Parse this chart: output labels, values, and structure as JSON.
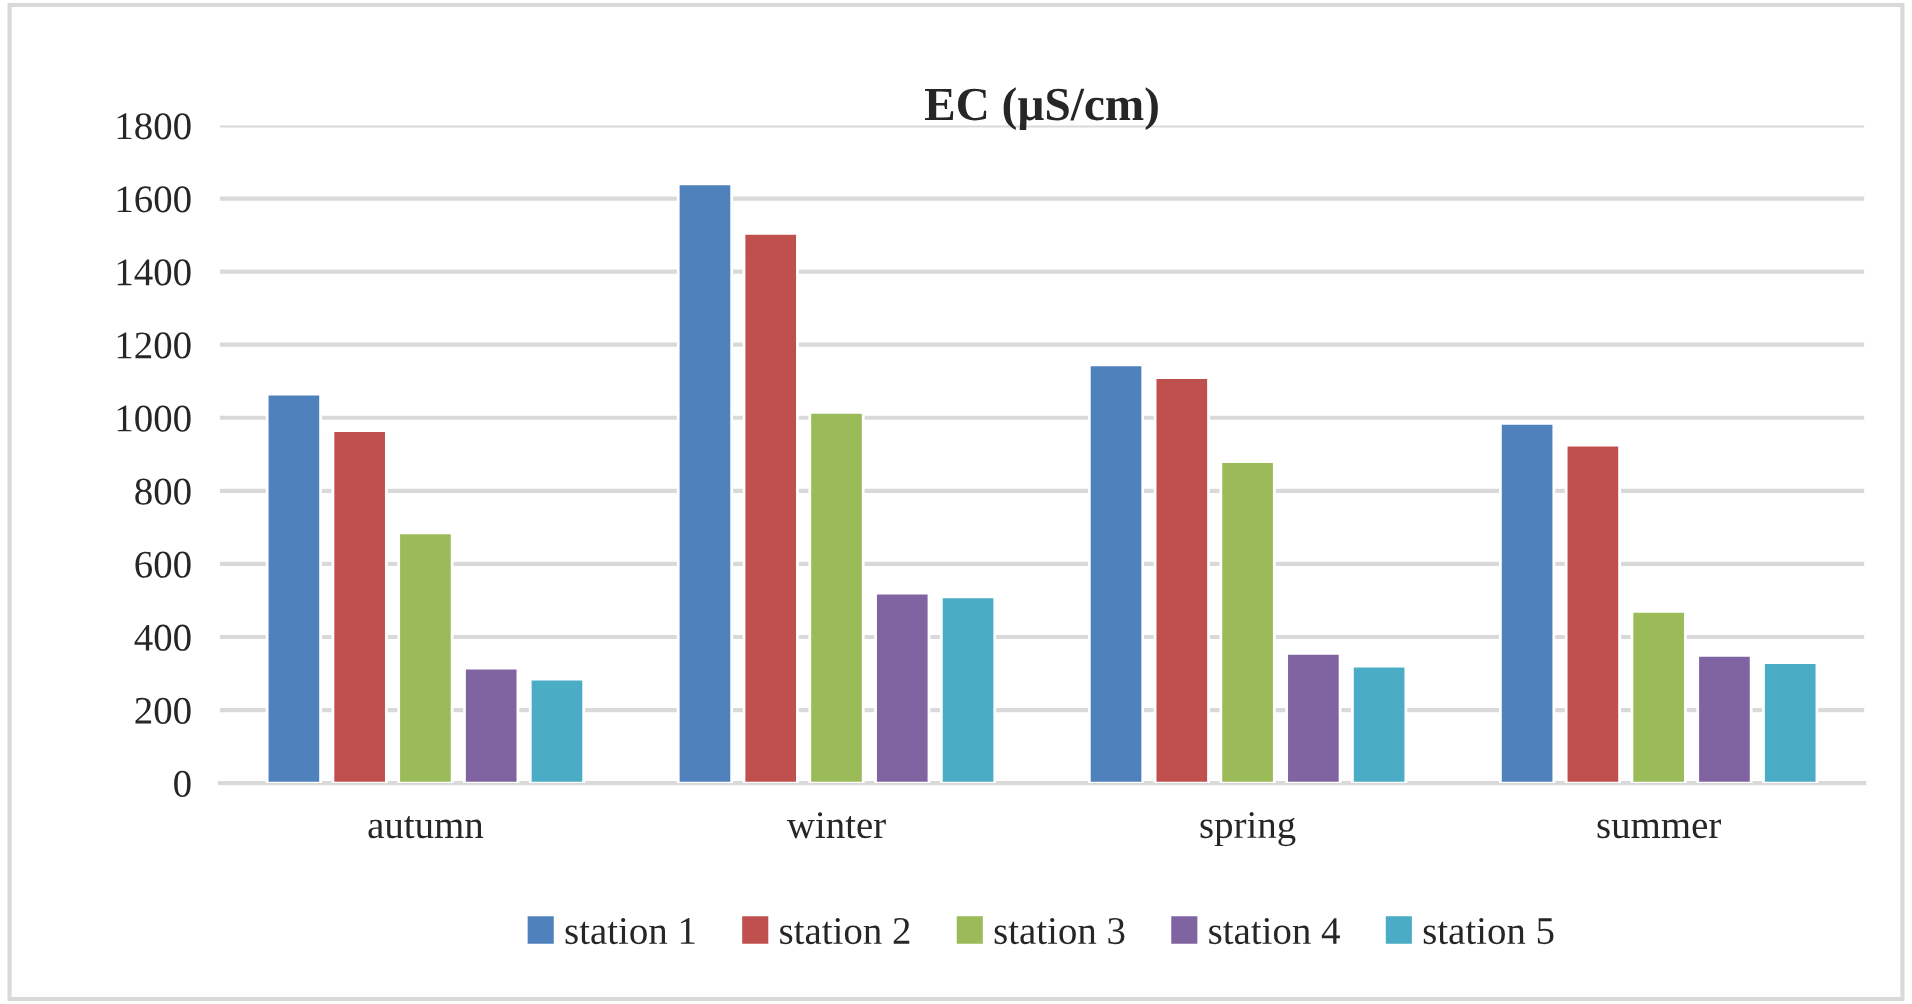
{
  "chart_data": {
    "type": "bar",
    "title": "EC (µS/cm)",
    "categories": [
      "autumn",
      "winter",
      "spring",
      "summer"
    ],
    "series": [
      {
        "name": "station 1",
        "color": "#4f81bd",
        "values": [
          1065,
          1640,
          1145,
          985
        ]
      },
      {
        "name": "station 2",
        "color": "#c0504d",
        "values": [
          965,
          1505,
          1110,
          925
        ]
      },
      {
        "name": "station 3",
        "color": "#9bbb59",
        "values": [
          685,
          1015,
          880,
          470
        ]
      },
      {
        "name": "station 4",
        "color": "#8064a2",
        "values": [
          315,
          520,
          355,
          350
        ]
      },
      {
        "name": "station 5",
        "color": "#4bacc6",
        "values": [
          285,
          510,
          320,
          330
        ]
      }
    ],
    "ylim": [
      0,
      1800
    ],
    "yticks": [
      0,
      200,
      400,
      600,
      800,
      1000,
      1200,
      1400,
      1600,
      1800
    ],
    "grid": "y",
    "legend": "bottom"
  }
}
